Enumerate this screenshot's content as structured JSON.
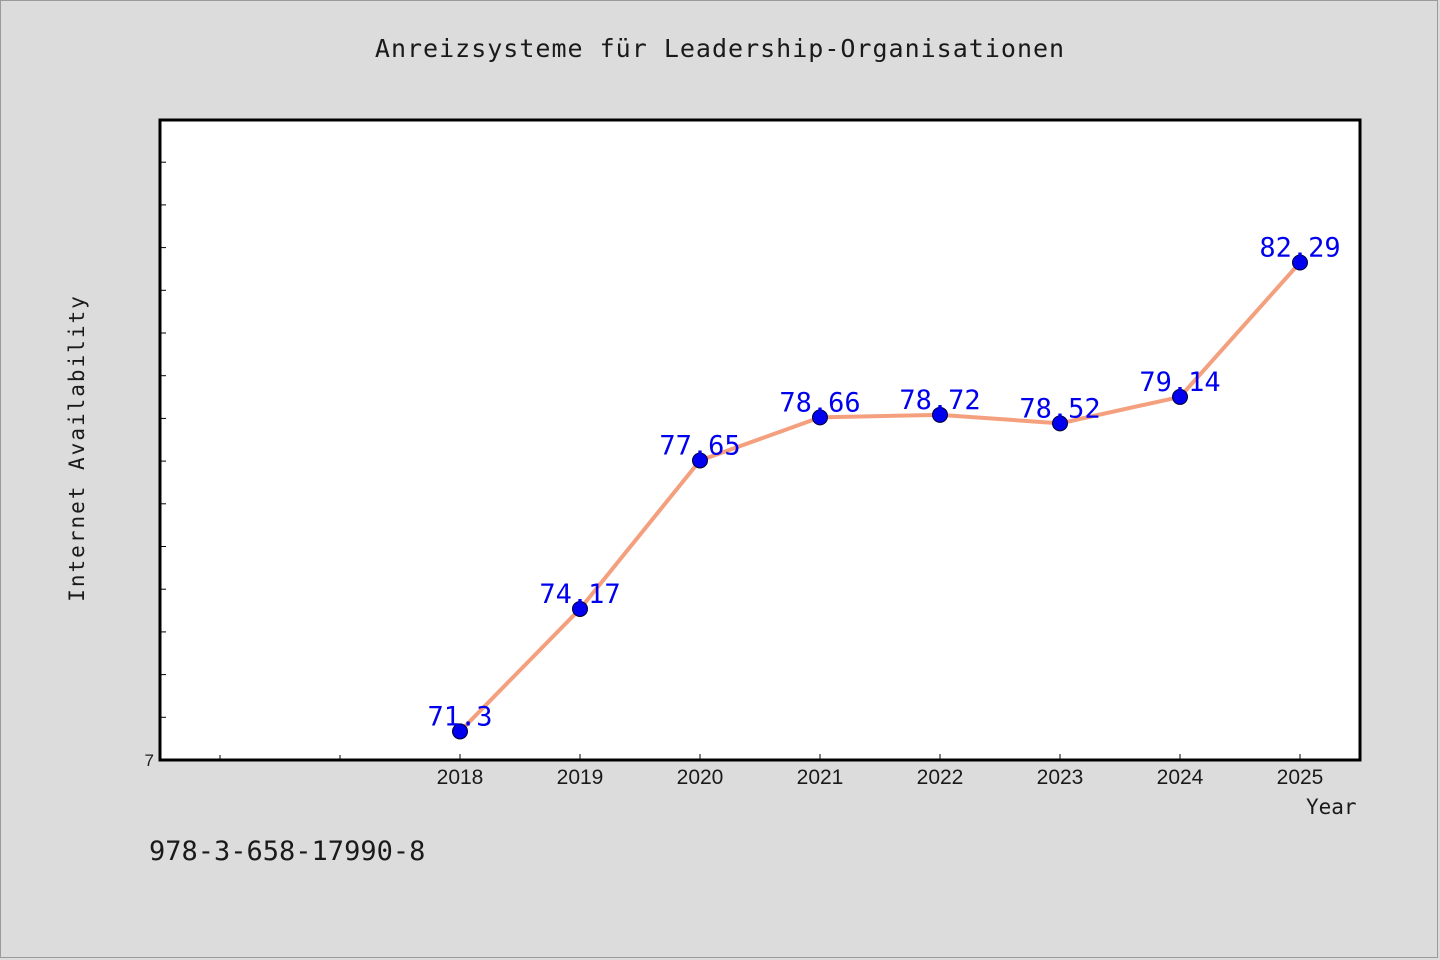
{
  "chart_data": {
    "type": "line",
    "title": "Anreizsysteme für Leadership-Organisationen",
    "xlabel": "Year",
    "ylabel": "Internet Availability",
    "x": [
      "2018",
      "2019",
      "2020",
      "2021",
      "2022",
      "2023",
      "2024",
      "2025"
    ],
    "series": [
      {
        "values": [
          71.3,
          74.17,
          77.65,
          78.66,
          78.72,
          78.52,
          79.14,
          82.29
        ],
        "labels": [
          "71.3",
          "74.17",
          "77.65",
          "78.66",
          "78.72",
          "78.52",
          "79.14",
          "82.29"
        ]
      }
    ],
    "ylim": [
      70.63,
      85.63
    ],
    "y_tick_label": "7",
    "grid": false,
    "line_color": "#f4a07e",
    "marker_color": "#0000ee",
    "label_color": "#0000ee"
  },
  "footer": {
    "isbn": "978-3-658-17990-8"
  }
}
